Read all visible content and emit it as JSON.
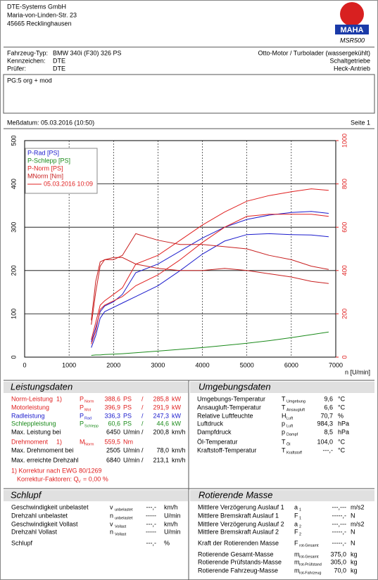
{
  "header": {
    "company": "DTE-Systems GmbH",
    "street": "Maria-von-Linden-Str. 23",
    "city": "45665 Recklinghausen",
    "logo": "MAHA",
    "model": "MSR500"
  },
  "vehicle": {
    "type_label": "Fahrzeug-Typ:",
    "type": "BMW 340i (F30) 326 PS",
    "plate_label": "Kennzeichen:",
    "plate": "DTE",
    "tester_label": "Prüfer:",
    "tester": "DTE",
    "engine": "Otto-Motor / Turbolader (wassergekühlt)",
    "gearbox": "Schaltgetriebe",
    "drive": "Heck-Antrieb"
  },
  "note": "PG:5 org + mod",
  "measurement": {
    "date": "Meßdatum: 05.03.2016 (10:50)",
    "page": "Seite 1"
  },
  "chart_data": {
    "type": "line",
    "x_label": "n [U/min]",
    "x": [
      1500,
      1600,
      1700,
      1800,
      2000,
      2200,
      2500,
      3000,
      3500,
      4000,
      4500,
      5000,
      5500,
      6000,
      6450,
      6840
    ],
    "series": [
      {
        "name": "P-Rad [PS]",
        "color": "#1a1acc",
        "values": [
          35,
          68,
          105,
          118,
          128,
          145,
          195,
          215,
          245,
          275,
          300,
          318,
          328,
          334,
          336.3,
          332
        ]
      },
      {
        "color": "#1a1acc",
        "values": [
          22,
          50,
          90,
          105,
          115,
          125,
          140,
          165,
          200,
          238,
          268,
          283,
          285,
          283,
          282,
          278
        ]
      },
      {
        "name": "P-Schlepp [PS]",
        "color": "#1a8a1a",
        "values": [
          4,
          5,
          5,
          6,
          7,
          8,
          10,
          14,
          18,
          22,
          27,
          32,
          38,
          45,
          52,
          58
        ]
      },
      {
        "name": "P-Norm [PS]",
        "color": "#e02020",
        "values": [
          40,
          80,
          120,
          130,
          145,
          160,
          215,
          235,
          270,
          305,
          335,
          360,
          373,
          382,
          388.6,
          385
        ]
      },
      {
        "color": "#e02020",
        "values": [
          30,
          60,
          110,
          120,
          130,
          140,
          165,
          190,
          225,
          265,
          300,
          325,
          330,
          330,
          330,
          325
        ]
      },
      {
        "name": "MNorm [Nm]",
        "color": "#c81e1e",
        "axis": "y2",
        "values": [
          170,
          350,
          440,
          450,
          450,
          470,
          570,
          540,
          520,
          520,
          510,
          500,
          470,
          450,
          420,
          405
        ]
      },
      {
        "color": "#c81e1e",
        "axis": "y2",
        "values": [
          150,
          300,
          420,
          450,
          460,
          460,
          430,
          410,
          400,
          400,
          410,
          400,
          385,
          370,
          350,
          340
        ]
      }
    ],
    "legend_run": {
      "label": "05.03.2016 10:09",
      "color": "#e02020"
    },
    "xlim": [
      0,
      7000
    ],
    "xticks": [
      0,
      1000,
      2000,
      3000,
      4000,
      5000,
      6000,
      7000
    ],
    "ylim": [
      0,
      500
    ],
    "yticks": [
      0,
      100,
      200,
      300,
      400,
      500
    ],
    "y2lim": [
      0,
      1000
    ],
    "y2ticks": [
      0,
      200,
      400,
      600,
      800,
      1000
    ],
    "y2color": "#e02020",
    "grid": true
  },
  "leistung": {
    "title": "Leistungsdaten",
    "rows": [
      {
        "label": "Norm-Leistung",
        "note": "1)",
        "sym": "P",
        "sub": "Norm",
        "v1": "388,6",
        "u1": "PS",
        "sep": "/",
        "v2": "285,8",
        "u2": "kW",
        "color": "#e02020"
      },
      {
        "label": "Motorleistung",
        "sym": "P",
        "sub": "Mot",
        "v1": "396,9",
        "u1": "PS",
        "sep": "/",
        "v2": "291,9",
        "u2": "kW",
        "color": "#e02020"
      },
      {
        "label": "Radleistung",
        "sym": "P",
        "sub": "Rad",
        "v1": "336,3",
        "u1": "PS",
        "sep": "/",
        "v2": "247,3",
        "u2": "kW",
        "color": "#1a1acc"
      },
      {
        "label": "Schleppleistung",
        "sym": "P",
        "sub": "Schlepp",
        "v1": "60,6",
        "u1": "PS",
        "sep": "/",
        "v2": "44,6",
        "u2": "kW",
        "color": "#1a8a1a"
      },
      {
        "label": "Max. Leistung bei",
        "v1": "6450",
        "u1": "U/min",
        "sep": "/",
        "v2": "200,8",
        "u2": "km/h",
        "color": "#000"
      },
      {
        "label": "Drehmoment",
        "note": "1)",
        "sym": "M",
        "sub": "Norm",
        "v1": "559,5",
        "u1": "Nm",
        "color": "#e02020"
      },
      {
        "label": "Max. Drehmoment bei",
        "v1": "2505",
        "u1": "U/min",
        "sep": "/",
        "v2": "78,0",
        "u2": "km/h",
        "color": "#000"
      },
      {
        "label": "Max. erreichte Drehzahl",
        "v1": "6840",
        "u1": "U/min",
        "sep": "/",
        "v2": "213,1",
        "u2": "km/h",
        "color": "#000"
      }
    ],
    "footnote": "1) Korrektur nach EWG 80/1269",
    "factor": "Korrektur-Faktoren: Q",
    "factor_sub": "V",
    "factor_value": "= 0,00 %"
  },
  "umgebung": {
    "title": "Umgebungsdaten",
    "rows": [
      {
        "label": "Umgebungs-Temperatur",
        "sym": "T",
        "sub": "Umgebung",
        "v1": "9,6",
        "u1": "°C"
      },
      {
        "label": "Ansaugluft-Temperatur",
        "sym": "T",
        "sub": "Ansaugluft",
        "v1": "6,6",
        "u1": "°C"
      },
      {
        "label": "Relative Luftfeuchte",
        "sym": "H",
        "sub": "Luft",
        "v1": "70,7",
        "u1": "%"
      },
      {
        "label": "Luftdruck",
        "sym": "p",
        "sub": "Luft",
        "v1": "984,3",
        "u1": "hPa"
      },
      {
        "label": "Dampfdruck",
        "sym": "p",
        "sub": "Dampf",
        "v1": "8,5",
        "u1": "hPa"
      },
      {
        "label": "Öl-Temperatur",
        "sym": "T",
        "sub": "Öl",
        "v1": "104,0",
        "u1": "°C"
      },
      {
        "label": "Kraftstoff-Temperatur",
        "sym": "T",
        "sub": "Kraftstoff",
        "v1": "---,-",
        "u1": "°C"
      }
    ]
  },
  "schlupf": {
    "title": "Schlupf",
    "rows": [
      {
        "label": "Geschwindigkeit unbelastet",
        "sym": "v",
        "sub": "unbelastet",
        "v1": "---,-",
        "u1": "km/h"
      },
      {
        "label": "Drehzahl unbelastet",
        "sym": "n",
        "sub": "unbelastet",
        "v1": "-----",
        "u1": "U/min"
      },
      {
        "label": "Geschwindigkeit Vollast",
        "sym": "v",
        "sub": "Vollast",
        "v1": "---,-",
        "u1": "km/h"
      },
      {
        "label": "Drehzahl Vollast",
        "sym": "n",
        "sub": "Vollast",
        "v1": "-----",
        "u1": "U/min"
      },
      {
        "label": "Schlupf",
        "v1": "---,-",
        "u1": "%"
      }
    ]
  },
  "rotierend": {
    "title": "Rotierende Masse",
    "rows": [
      {
        "label": "Mittlere Verzögerung Auslauf 1",
        "sym": "a",
        "sub": "1",
        "v1": "---,---",
        "u1": "m/s2"
      },
      {
        "label": "Mittlere Bremskraft Auslauf 1",
        "sym": "F",
        "sub": "1",
        "v1": "-----,-",
        "u1": "N"
      },
      {
        "label": "Mittlere Verzögerung Auslauf 2",
        "sym": "a",
        "sub": "2",
        "v1": "---,---",
        "u1": "m/s2"
      },
      {
        "label": "Mittlere Bremskraft Auslauf 2",
        "sym": "F",
        "sub": "2",
        "v1": "-----,-",
        "u1": "N"
      },
      {
        "label": "Kraft der Rotierenden Masse",
        "sym": "F",
        "sub": "rot-Gesamt",
        "v1": "-----,-",
        "u1": "N"
      },
      {
        "label": "Rotierende Gesamt-Masse",
        "sym": "m",
        "sub": "rot-Gesamt",
        "v1": "375,0",
        "u1": "kg"
      },
      {
        "label": "Rotierende Prüfstands-Masse",
        "sym": "m",
        "sub": "rot-Prüfstand",
        "v1": "305,0",
        "u1": "kg"
      },
      {
        "label": "Rotierende Fahrzeug-Masse",
        "sym": "m",
        "sub": "rot-Fahrzeug",
        "v1": "70,0",
        "u1": "kg"
      }
    ]
  }
}
